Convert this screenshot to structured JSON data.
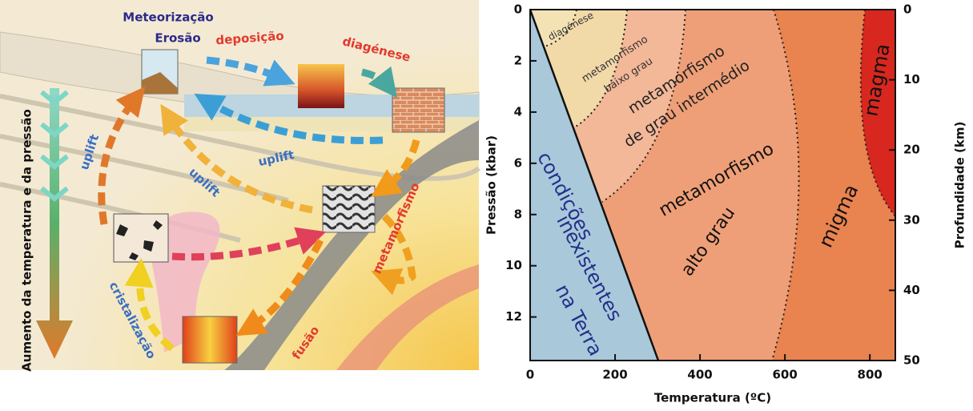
{
  "rock_cycle": {
    "meteorizacao": "Meteorização",
    "erosao": "Erosão",
    "deposicao": "deposição",
    "diagenese": "diagénese",
    "uplift_left": "uplift",
    "uplift_right": "uplift",
    "uplift_center": "uplift",
    "metamorfismo": "metamorfismo",
    "fusao": "fusão",
    "cristalizacao": "cristalização",
    "side_label": "Aumento da temperatura e da pressão"
  },
  "pt_diagram": {
    "x_label": "Temperatura (ºC)",
    "y_label": "Pressão (kbar)",
    "y2_label": "Profundidade (km)",
    "xlim": [
      0,
      860
    ],
    "xticks": [
      0,
      200,
      400,
      600,
      800
    ],
    "ylim": [
      0,
      13.7
    ],
    "yticks": [
      0,
      2,
      4,
      6,
      8,
      10,
      12
    ],
    "y2lim": [
      0,
      50
    ],
    "y2ticks": [
      0,
      10,
      20,
      30,
      40,
      50
    ],
    "regions": [
      {
        "lines": [
          "diagénese"
        ]
      },
      {
        "lines": [
          "metamorfismo",
          "baixo grau"
        ]
      },
      {
        "lines": [
          "metamorfismo",
          "de grau intermédio"
        ]
      },
      {
        "lines": [
          "metamorfismo",
          "alto grau"
        ]
      },
      {
        "lines": [
          "migma"
        ]
      },
      {
        "lines": [
          "magma"
        ]
      },
      {
        "lines": [
          "condições",
          "inexistentes",
          "na Terra"
        ]
      }
    ]
  }
}
